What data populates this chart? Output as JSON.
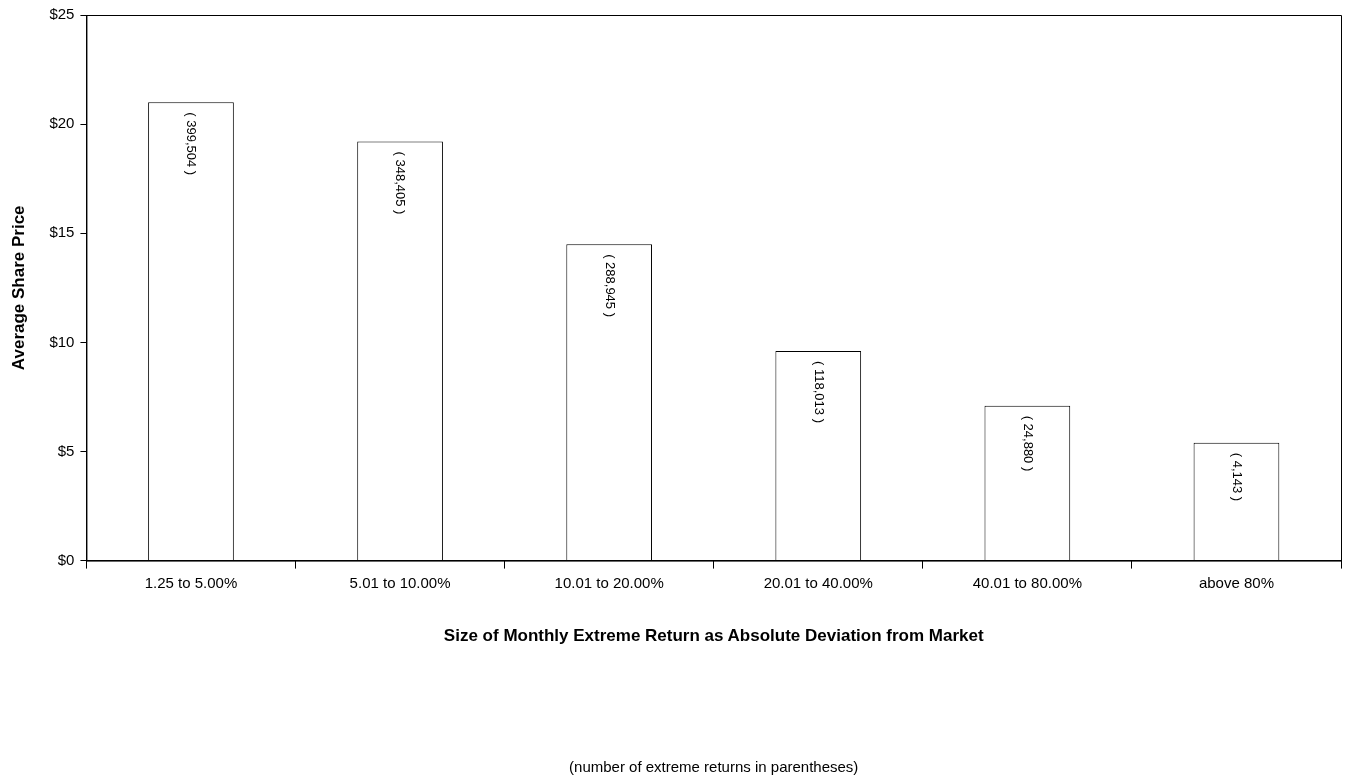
{
  "chart_data": {
    "type": "bar",
    "categories": [
      "1.25 to 5.00%",
      "5.01 to 10.00%",
      "10.01 to 20.00%",
      "20.01 to 40.00%",
      "40.01 to 80.00%",
      "above 80%"
    ],
    "values": [
      21.0,
      19.2,
      14.5,
      9.6,
      7.1,
      5.4
    ],
    "color": "#ffffff",
    "xlabel": "Size of Monthly Extreme Return as Absolute Deviation from Market",
    "ylabel": "Average Share Price",
    "annotations": [
      {
        "text": "( 399,504 )",
        "x": "1.25 to 5.00%",
        "y": 21.0
      },
      {
        "text": "( 348,405 )",
        "x": "5.01 to 10.00%",
        "y": 19.2
      },
      {
        "text": "( 288,945 )",
        "x": "10.01 to 20.00%",
        "y": 14.5
      },
      {
        "text": "( 118,013 )",
        "x": "20.01 to 40.00%",
        "y": 9.6
      },
      {
        "text": "( 24,880 )",
        "x": "40.01 to 80.00%",
        "y": 7.1
      },
      {
        "text": "( 4,143 )",
        "x": "above 80%",
        "y": 5.4
      },
      "(number of extreme returns in parentheses)"
    ],
    "ylim": [
      0,
      25
    ],
    "yticks": [
      {
        "value": 0,
        "label": "$0"
      },
      {
        "value": 5,
        "label": "$5"
      },
      {
        "value": 10,
        "label": "$10"
      },
      {
        "value": 15,
        "label": "$15"
      },
      {
        "value": 20,
        "label": "$20"
      },
      {
        "value": 25,
        "label": "$25"
      }
    ],
    "grid": false,
    "legend": false
  }
}
